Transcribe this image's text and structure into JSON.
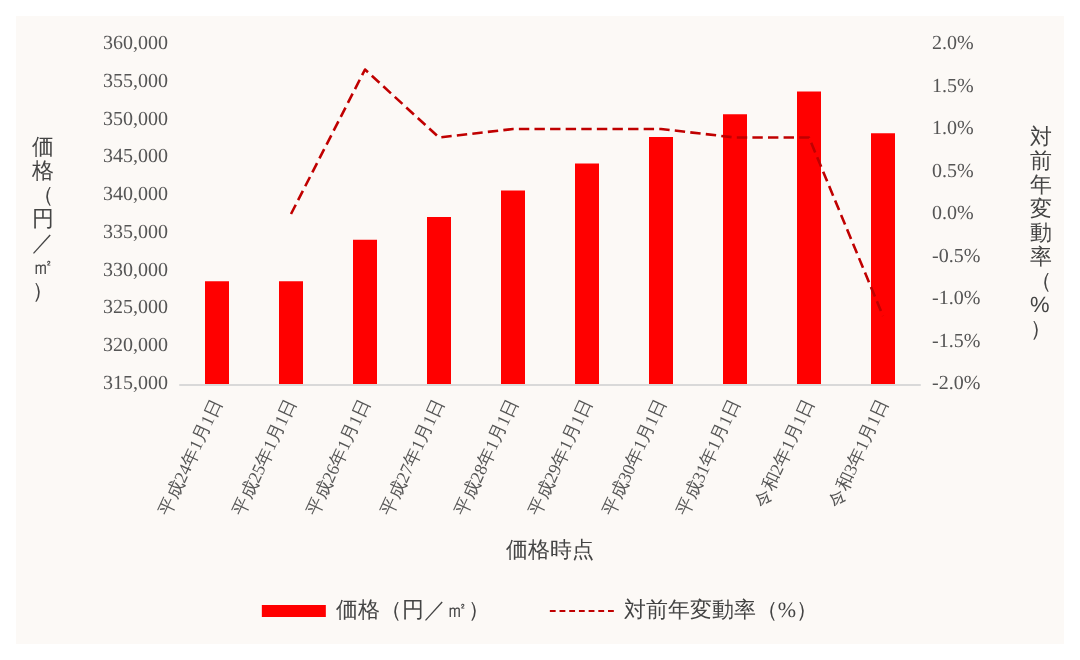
{
  "chart_data": {
    "type": "bar",
    "xlabel": "価格時点",
    "ylabel": "価格（円／㎡）",
    "y2label": "対前年変動率（%）",
    "categories": [
      "平成24年1月1日",
      "平成25年1月1日",
      "平成26年1月1日",
      "平成27年1月1日",
      "平成28年1月1日",
      "平成29年1月1日",
      "平成30年1月1日",
      "平成31年1月1日",
      "令和2年1月1日",
      "令和3年1月1日"
    ],
    "series": [
      {
        "name": "価格（円／㎡）",
        "color": "#ff0000",
        "values": [
          328600,
          328600,
          334100,
          337100,
          340600,
          344200,
          347700,
          350700,
          353700,
          348200
        ]
      },
      {
        "name": "対前年変動率（%）",
        "type": "line",
        "axis": "y2",
        "color": "#c00000",
        "line_style": "dashed",
        "marker": "none",
        "values": [
          null,
          0.0,
          1.7,
          0.9,
          1.0,
          1.0,
          1.0,
          0.9,
          0.9,
          -1.2
        ]
      }
    ],
    "ylim": [
      315000,
      360000
    ],
    "yticks": [
      {
        "value": 315000,
        "label": "315,000"
      },
      {
        "value": 320000,
        "label": "320,000"
      },
      {
        "value": 325000,
        "label": "325,000"
      },
      {
        "value": 330000,
        "label": "330,000"
      },
      {
        "value": 335000,
        "label": "335,000"
      },
      {
        "value": 340000,
        "label": "340,000"
      },
      {
        "value": 345000,
        "label": "345,000"
      },
      {
        "value": 350000,
        "label": "350,000"
      },
      {
        "value": 355000,
        "label": "355,000"
      },
      {
        "value": 360000,
        "label": "360,000"
      }
    ],
    "y2lim": [
      -2,
      2
    ],
    "y2ticks": [
      {
        "value": -2,
        "label": "-2.0%"
      },
      {
        "value": -1.5,
        "label": "-1.5%"
      },
      {
        "value": -1,
        "label": "-1.0%"
      },
      {
        "value": -0.5,
        "label": "-0.5%"
      },
      {
        "value": 0,
        "label": "0.0%"
      },
      {
        "value": 0.5,
        "label": "0.5%"
      },
      {
        "value": 1,
        "label": "1.0%"
      },
      {
        "value": 1.5,
        "label": "1.5%"
      },
      {
        "value": 2,
        "label": "2.0%"
      }
    ],
    "grid": false,
    "legend": "bottom"
  }
}
